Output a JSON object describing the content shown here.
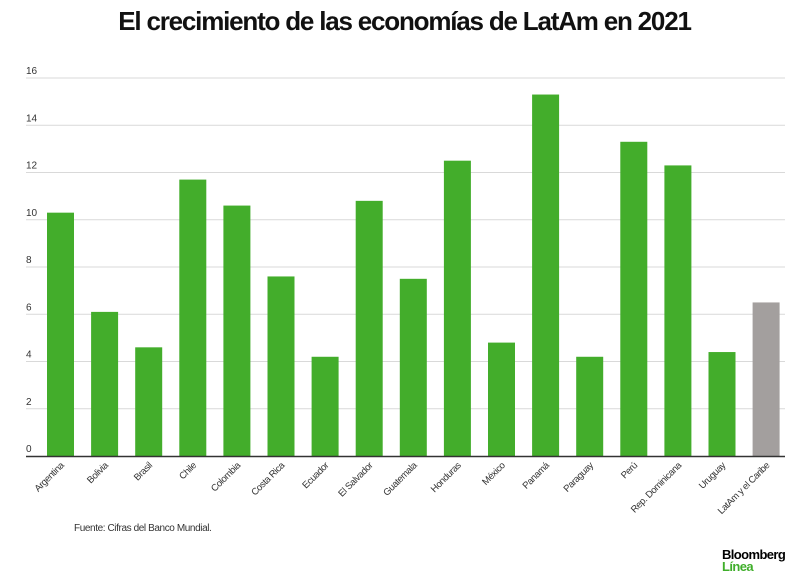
{
  "chart_data": {
    "type": "bar",
    "title": "El crecimiento de las economías de LatAm en 2021",
    "xlabel": "",
    "ylabel": "",
    "ylim": [
      0,
      16
    ],
    "yticks": [
      0,
      2,
      4,
      6,
      8,
      10,
      12,
      14,
      16
    ],
    "grid": true,
    "categories": [
      "Argentina",
      "Bolivia",
      "Brasil",
      "Chile",
      "Colombia",
      "Costa Rica",
      "Ecuador",
      "El Salvador",
      "Guatemala",
      "Honduras",
      "México",
      "Panamá",
      "Paraguay",
      "Perú",
      "Rep. Dominicana",
      "Uruguay",
      "LatAm y el Caribe"
    ],
    "values": [
      10.3,
      6.1,
      4.6,
      11.7,
      10.6,
      7.6,
      4.2,
      10.8,
      7.5,
      12.5,
      4.8,
      15.3,
      4.2,
      13.3,
      12.3,
      4.4,
      6.5
    ],
    "colors": {
      "country": "#43ad2b",
      "aggregate": "#a39f9e",
      "grid": "#d9d9d9",
      "axis": "#333333"
    },
    "aggregate_category": "LatAm y el Caribe"
  },
  "source": "Fuente: Cifras del Banco Mundial.",
  "logo": {
    "line1": "Bloomberg",
    "line2": "Línea"
  }
}
